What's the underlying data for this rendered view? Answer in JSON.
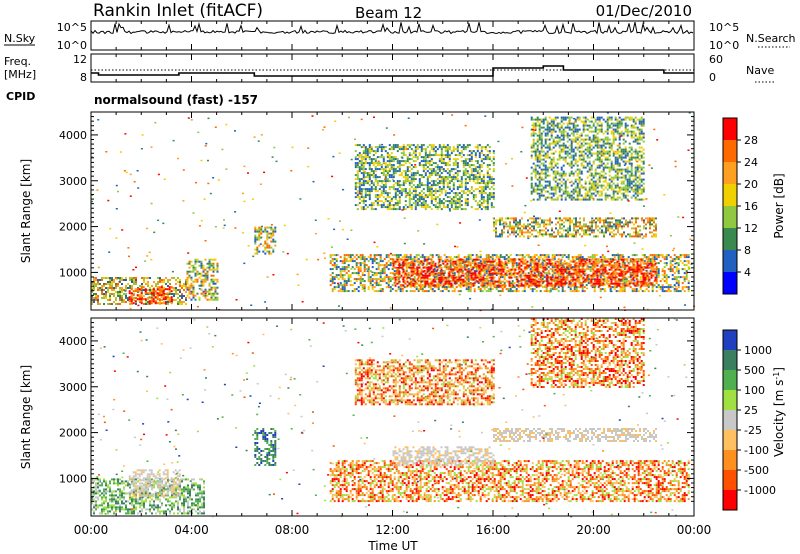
{
  "header": {
    "title": "Rankin Inlet (fitACF)",
    "beam": "Beam 12",
    "date": "01/Dec/2010"
  },
  "noise_panel": {
    "left_label": "N.Sky",
    "left_ticks": [
      "10^5",
      "10^0"
    ],
    "right_ticks": [
      "10^5",
      "10^0"
    ],
    "right_label": "N.Search"
  },
  "freq_panel": {
    "left_label_1": "Freq.",
    "left_label_2": "[MHz]",
    "left_ticks": [
      "12",
      "8"
    ],
    "right_ticks": [
      "60",
      "0"
    ],
    "right_label": "Nave",
    "cpid_label": "CPID",
    "cpid_text": "normalsound (fast) -157"
  },
  "chart_data": [
    {
      "type": "heatmap",
      "name": "power",
      "ylabel": "Slant Range [km]",
      "yticks": [
        "1000",
        "2000",
        "3000",
        "4000"
      ],
      "ylim": [
        180,
        4500
      ],
      "xlim": [
        0,
        24
      ],
      "colorbar": {
        "label": "Power [dB]",
        "ticks": [
          "28",
          "24",
          "20",
          "16",
          "12",
          "8",
          "4"
        ],
        "colors": [
          "#ff0000",
          "#ff6a00",
          "#ffa020",
          "#f0d000",
          "#90c840",
          "#3a8a50",
          "#2060c0",
          "#0000ff"
        ]
      },
      "regions": [
        {
          "t0": 0.0,
          "t1": 3.8,
          "r0": 300,
          "r1": 900,
          "level": "mid"
        },
        {
          "t0": 1.5,
          "t1": 3.2,
          "r0": 350,
          "r1": 700,
          "level": "high"
        },
        {
          "t0": 3.8,
          "t1": 5.0,
          "r0": 400,
          "r1": 1300,
          "level": "mid"
        },
        {
          "t0": 6.5,
          "t1": 7.3,
          "r0": 1400,
          "r1": 2000,
          "level": "mid"
        },
        {
          "t0": 9.5,
          "t1": 23.8,
          "r0": 600,
          "r1": 1400,
          "level": "mid"
        },
        {
          "t0": 12.0,
          "t1": 22.5,
          "r0": 700,
          "r1": 1300,
          "level": "high"
        },
        {
          "t0": 10.5,
          "t1": 16.0,
          "r0": 2400,
          "r1": 3800,
          "level": "low"
        },
        {
          "t0": 16.0,
          "t1": 22.5,
          "r0": 1800,
          "r1": 2200,
          "level": "mid"
        },
        {
          "t0": 17.5,
          "t1": 22.0,
          "r0": 2600,
          "r1": 4400,
          "level": "low"
        }
      ]
    },
    {
      "type": "heatmap",
      "name": "velocity",
      "ylabel": "Slant Range [km]",
      "yticks": [
        "1000",
        "2000",
        "3000",
        "4000"
      ],
      "ylim": [
        180,
        4500
      ],
      "xlim": [
        0,
        24
      ],
      "colorbar": {
        "label": "Velocity [m s^-1]",
        "ticks": [
          "1000",
          "500",
          "100",
          "25",
          "-25",
          "-100",
          "-500",
          "-1000"
        ],
        "colors": [
          "#2040c0",
          "#3a8060",
          "#50b050",
          "#a0e040",
          "#c8c8c8",
          "#ffc060",
          "#ff9020",
          "#ff5000",
          "#ff0000"
        ]
      },
      "regions": [
        {
          "t0": 0.0,
          "t1": 4.5,
          "r0": 250,
          "r1": 1000,
          "level": "green"
        },
        {
          "t0": 1.5,
          "t1": 3.5,
          "r0": 600,
          "r1": 1200,
          "level": "gray"
        },
        {
          "t0": 6.5,
          "t1": 7.3,
          "r0": 1300,
          "r1": 2100,
          "level": "blue"
        },
        {
          "t0": 9.5,
          "t1": 23.8,
          "r0": 500,
          "r1": 1400,
          "level": "orange"
        },
        {
          "t0": 12.0,
          "t1": 16.0,
          "r0": 1300,
          "r1": 1700,
          "level": "gray"
        },
        {
          "t0": 10.5,
          "t1": 16.0,
          "r0": 2600,
          "r1": 3600,
          "level": "orange"
        },
        {
          "t0": 16.0,
          "t1": 22.5,
          "r0": 1800,
          "r1": 2100,
          "level": "gray"
        },
        {
          "t0": 17.5,
          "t1": 22.0,
          "r0": 3000,
          "r1": 4500,
          "level": "orange"
        }
      ]
    }
  ],
  "x_axis": {
    "ticks": [
      "00:00",
      "04:00",
      "08:00",
      "12:00",
      "16:00",
      "20:00",
      "00:00"
    ],
    "label": "Time UT"
  }
}
